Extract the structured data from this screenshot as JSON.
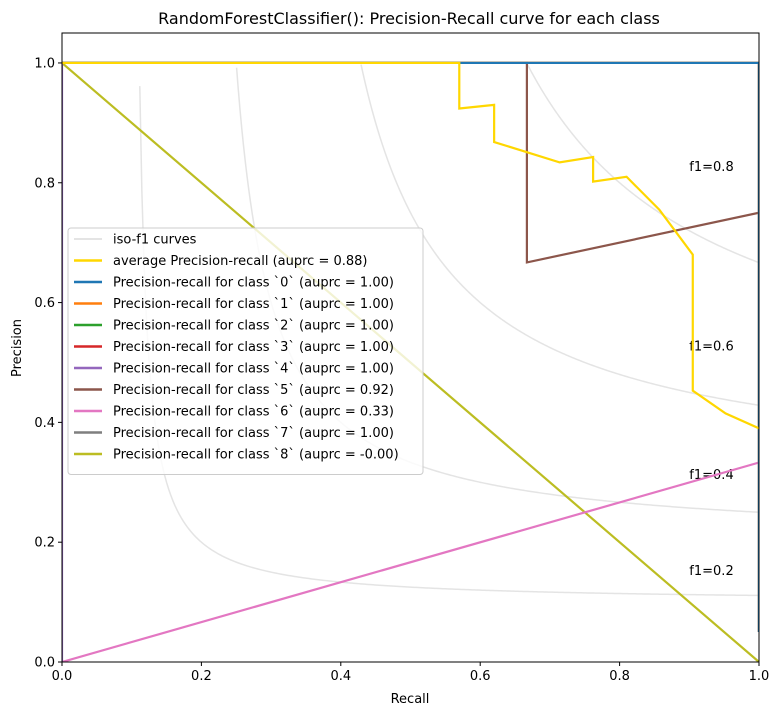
{
  "chart_data": {
    "type": "line",
    "title": "RandomForestClassifier(): Precision-Recall curve for each class",
    "xlabel": "Recall",
    "ylabel": "Precision",
    "xlim": [
      0.0,
      1.0
    ],
    "ylim": [
      0.0,
      1.05
    ],
    "xticks": [
      "0.0",
      "0.2",
      "0.4",
      "0.6",
      "0.8",
      "1.0"
    ],
    "yticks": [
      "0.0",
      "0.2",
      "0.4",
      "0.6",
      "0.8",
      "1.0"
    ],
    "grid": false,
    "legend_position": "center-left",
    "iso_f1": {
      "legend_label": "iso-f1 curves",
      "color": "#d9d9d9",
      "values": [
        0.2,
        0.4,
        0.6,
        0.8
      ],
      "labels": [
        "f1=0.2",
        "f1=0.4",
        "f1=0.6",
        "f1=0.8"
      ]
    },
    "series": [
      {
        "name": "average Precision-recall (auprc = 0.88)",
        "color": "#ffd700",
        "x": [
          0.0,
          0.57,
          0.57,
          0.62,
          0.62,
          0.714,
          0.762,
          0.762,
          0.81,
          0.857,
          0.905,
          0.905,
          0.952,
          1.0
        ],
        "y": [
          1.0,
          1.0,
          0.924,
          0.93,
          0.868,
          0.834,
          0.843,
          0.802,
          0.81,
          0.755,
          0.68,
          0.453,
          0.415,
          0.39
        ]
      },
      {
        "name": "Precision-recall for class `0` (auprc = 1.00)",
        "color": "#1f77b4",
        "x": [
          0.0,
          1.0,
          1.0
        ],
        "y": [
          1.0,
          1.0,
          0.05
        ]
      },
      {
        "name": "Precision-recall for class `1` (auprc = 1.00)",
        "color": "#ff7f0e",
        "x": [
          0.0,
          1.0,
          1.0
        ],
        "y": [
          1.0,
          1.0,
          0.05
        ]
      },
      {
        "name": "Precision-recall for class `2` (auprc = 1.00)",
        "color": "#2ca02c",
        "x": [
          0.0,
          1.0,
          1.0
        ],
        "y": [
          1.0,
          1.0,
          0.05
        ]
      },
      {
        "name": "Precision-recall for class `3` (auprc = 1.00)",
        "color": "#d62728",
        "x": [
          0.0,
          1.0,
          1.0
        ],
        "y": [
          1.0,
          1.0,
          0.05
        ]
      },
      {
        "name": "Precision-recall for class `4` (auprc = 1.00)",
        "color": "#9467bd",
        "x": [
          0.0,
          0.0,
          1.0,
          1.0
        ],
        "y": [
          0.0,
          1.0,
          1.0,
          0.05
        ]
      },
      {
        "name": "Precision-recall for class `5` (auprc = 0.92)",
        "color": "#8c564b",
        "x": [
          0.0,
          0.667,
          0.667,
          1.0
        ],
        "y": [
          1.0,
          1.0,
          0.667,
          0.75
        ]
      },
      {
        "name": "Precision-recall for class `6` (auprc = 0.33)",
        "color": "#e377c2",
        "x": [
          0.0,
          1.0
        ],
        "y": [
          0.0,
          0.333
        ]
      },
      {
        "name": "Precision-recall for class `7` (auprc = 1.00)",
        "color": "#7f7f7f",
        "x": [
          0.0,
          1.0,
          1.0
        ],
        "y": [
          1.0,
          1.0,
          0.05
        ]
      },
      {
        "name": "Precision-recall for class `8` (auprc = -0.00)",
        "color": "#bcbd22",
        "x": [
          0.0,
          1.0
        ],
        "y": [
          1.0,
          0.0
        ]
      }
    ]
  }
}
